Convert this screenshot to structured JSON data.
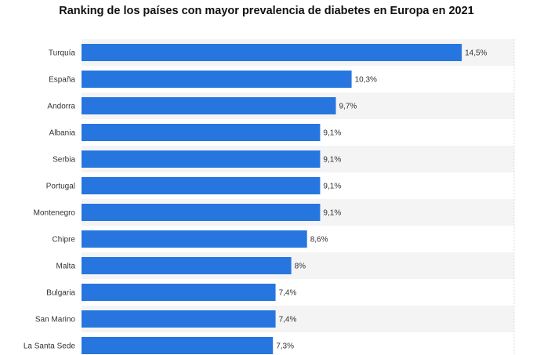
{
  "chart_data": {
    "type": "bar",
    "orientation": "horizontal",
    "title": "Ranking de los países con mayor prevalencia de diabetes en Europa en 2021",
    "categories": [
      "Turquía",
      "España",
      "Andorra",
      "Albania",
      "Serbia",
      "Portugal",
      "Montenegro",
      "Chipre",
      "Malta",
      "Bulgaria",
      "San Marino",
      "La Santa Sede"
    ],
    "values": [
      14.5,
      10.3,
      9.7,
      9.1,
      9.1,
      9.1,
      9.1,
      8.6,
      8.0,
      7.4,
      7.4,
      7.3
    ],
    "value_labels": [
      "14,5%",
      "10,3%",
      "9,7%",
      "9,1%",
      "9,1%",
      "9,1%",
      "9,1%",
      "8,6%",
      "8%",
      "7,4%",
      "7,4%",
      "7,3%"
    ],
    "xlim": [
      0,
      16.5
    ],
    "grid": true,
    "bar_color": "#2776e0",
    "stripe_color": "#f4f4f4"
  }
}
